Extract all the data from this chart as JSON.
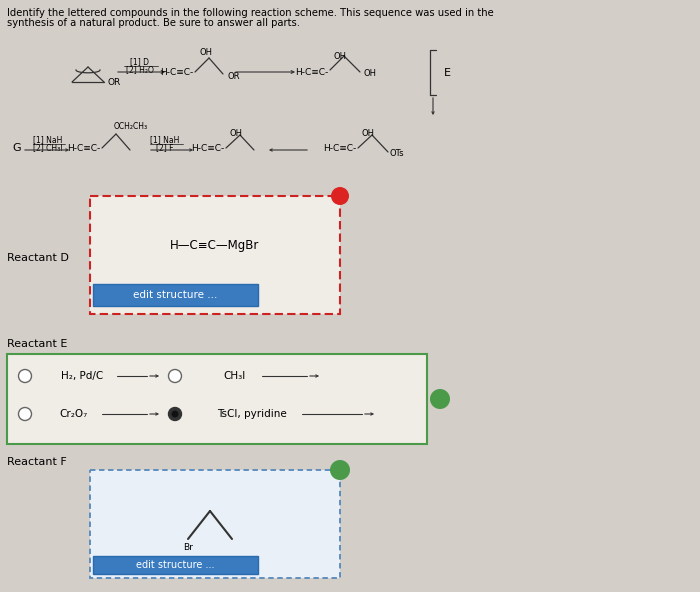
{
  "title_line1": "Identify the lettered compounds in the following reaction scheme. This sequence was used in the",
  "title_line2": "synthesis of a natural product. Be sure to answer all parts.",
  "bg_color": "#d4cec8",
  "box_bg": "#f0ece6",
  "white": "#ffffff",
  "red_border": "#cc2222",
  "green_border": "#4a9a4a",
  "green_check": "#4a9a4a",
  "blue_btn_bg": "#3a7abf",
  "blue_btn_border": "#2a6aaf",
  "reactant_d_label": "Reactant D",
  "reactant_e_label": "Reactant E",
  "reactant_f_label": "Reactant F",
  "edit_structure_text": "edit structure ...",
  "h_c_c_mobr": "H—C≡C—MgBr"
}
